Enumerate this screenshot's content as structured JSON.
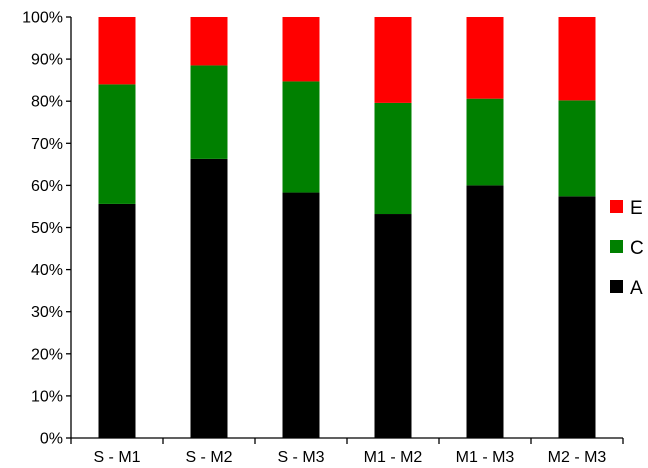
{
  "chart_data": {
    "type": "bar",
    "stacked": true,
    "categories": [
      "S - M1",
      "S - M2",
      "S - M3",
      "M1 - M2",
      "M1 - M3",
      "M2 - M3"
    ],
    "series": [
      {
        "name": "A",
        "color": "#000000",
        "values": [
          55.6,
          66.3,
          58.3,
          53.2,
          60.0,
          57.4
        ]
      },
      {
        "name": "C",
        "color": "#008000",
        "values": [
          28.4,
          22.2,
          26.4,
          26.4,
          20.6,
          22.8
        ]
      },
      {
        "name": "E",
        "color": "#ff0000",
        "values": [
          16.0,
          11.5,
          15.3,
          20.4,
          19.4,
          19.8
        ]
      }
    ],
    "y_ticks": [
      "0%",
      "10%",
      "20%",
      "30%",
      "40%",
      "50%",
      "60%",
      "70%",
      "80%",
      "90%",
      "100%"
    ],
    "ylim": [
      0,
      100
    ],
    "grid": false,
    "legend_position": "right",
    "legend_order": [
      "E",
      "C",
      "A"
    ],
    "title": "",
    "xlabel": "",
    "ylabel": ""
  }
}
